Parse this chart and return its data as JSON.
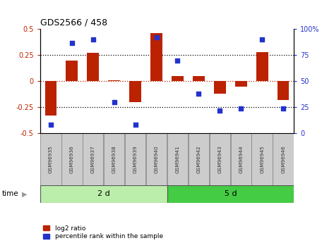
{
  "title": "GDS2566 / 458",
  "samples": [
    "GSM96935",
    "GSM96936",
    "GSM96937",
    "GSM96938",
    "GSM96939",
    "GSM96940",
    "GSM96941",
    "GSM96942",
    "GSM96943",
    "GSM96944",
    "GSM96945",
    "GSM96946"
  ],
  "log2_ratio": [
    -0.33,
    0.2,
    0.27,
    0.01,
    -0.2,
    0.46,
    0.05,
    0.05,
    -0.12,
    -0.05,
    0.28,
    -0.18
  ],
  "percentile_rank": [
    8,
    87,
    90,
    30,
    8,
    92,
    70,
    38,
    22,
    24,
    90,
    24
  ],
  "group_labels": [
    "2 d",
    "5 d"
  ],
  "group_split": 6,
  "bar_color": "#bb2200",
  "dot_color": "#2233cc",
  "ylim_left": [
    -0.5,
    0.5
  ],
  "ylim_right": [
    0,
    100
  ],
  "yticks_left": [
    -0.5,
    -0.25,
    0.0,
    0.25,
    0.5
  ],
  "yticks_right": [
    0,
    25,
    50,
    75,
    100
  ],
  "dotted_lines": [
    -0.25,
    0.0,
    0.25
  ],
  "group_color_light": "#bbeeaa",
  "group_color_dark": "#44cc44",
  "legend_labels": [
    "log2 ratio",
    "percentile rank within the sample"
  ],
  "background_color": "#ffffff",
  "cell_color": "#cccccc",
  "cell_edge": "#888888"
}
